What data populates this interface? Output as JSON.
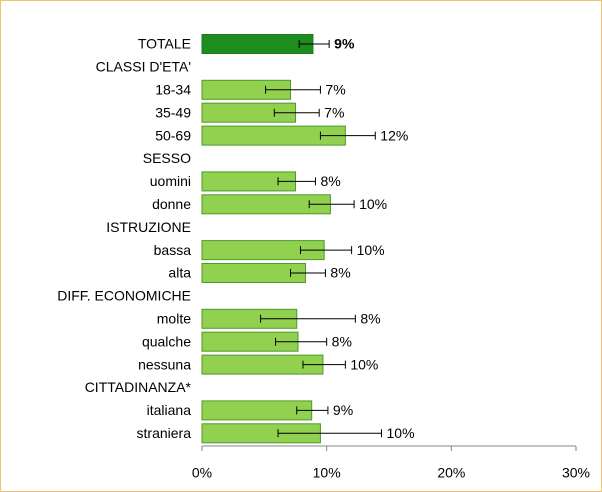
{
  "chart_data": {
    "type": "bar",
    "orientation": "horizontal",
    "categories": [
      "TOTALE",
      "CLASSI D'ETA'",
      "18-34",
      "35-49",
      "50-69",
      "SESSO",
      "uomini",
      "donne",
      "ISTRUZIONE",
      "bassa",
      "alta",
      "DIFF. ECONOMICHE",
      "molte",
      "qualche",
      "nessuna",
      "CITTADINANZA*",
      "italiana",
      "straniera"
    ],
    "values": [
      8.9,
      null,
      7.1,
      7.5,
      11.5,
      null,
      7.5,
      10.3,
      null,
      9.8,
      8.3,
      null,
      7.6,
      7.7,
      9.7,
      null,
      8.8,
      9.5
    ],
    "value_labels": [
      "9%",
      null,
      "7%",
      "7%",
      "12%",
      null,
      "8%",
      "10%",
      null,
      "10%",
      "8%",
      null,
      "8%",
      "8%",
      "10%",
      null,
      "9%",
      "10%"
    ],
    "lower": [
      7.8,
      null,
      5.1,
      5.8,
      9.5,
      null,
      6.1,
      8.6,
      null,
      7.9,
      7.1,
      null,
      4.7,
      5.9,
      8.1,
      null,
      7.6,
      6.1
    ],
    "upper": [
      10.2,
      null,
      9.5,
      9.4,
      13.9,
      null,
      9.1,
      12.2,
      null,
      12.0,
      9.9,
      null,
      12.3,
      10.0,
      11.5,
      null,
      10.1,
      14.4
    ],
    "colors": [
      "#1e8c1e",
      null,
      "#92d050",
      "#92d050",
      "#92d050",
      null,
      "#92d050",
      "#92d050",
      null,
      "#92d050",
      "#92d050",
      null,
      "#92d050",
      "#92d050",
      "#92d050",
      null,
      "#92d050",
      "#92d050"
    ],
    "xlim": [
      0,
      30
    ],
    "xticks": [
      {
        "value": 0,
        "label": "0%"
      },
      {
        "value": 10,
        "label": "10%"
      },
      {
        "value": 20,
        "label": "20%"
      },
      {
        "value": 30,
        "label": "30%"
      }
    ]
  }
}
